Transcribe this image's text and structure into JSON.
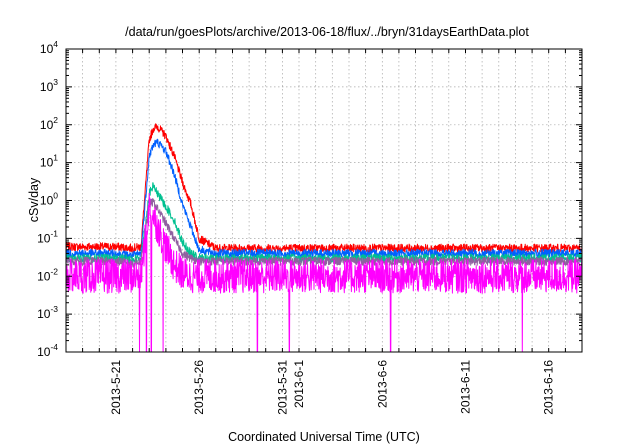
{
  "chart_data": {
    "type": "line",
    "title": "/data/run/goesPlots/archive/2013-06-18/flux/../bryn/31daysEarthData.plot",
    "xlabel": "Coordinated Universal Time (UTC)",
    "ylabel": "cSv/day",
    "yscale": "log",
    "ylim": [
      0.0001,
      10000
    ],
    "xlim": [
      "2013-05-18",
      "2013-06-18"
    ],
    "grid": true,
    "legend": "none",
    "x_ticks": [
      "2013-5-21",
      "2013-5-26",
      "2013-5-31",
      "2013-6-1",
      "2013-6-6",
      "2013-6-11",
      "2013-6-16"
    ],
    "y_ticks": [
      {
        "base": "10",
        "exp": "-4"
      },
      {
        "base": "10",
        "exp": "-3"
      },
      {
        "base": "10",
        "exp": "-2"
      },
      {
        "base": "10",
        "exp": "-1"
      },
      {
        "base": "10",
        "exp": "0"
      },
      {
        "base": "10",
        "exp": "1"
      },
      {
        "base": "10",
        "exp": "2"
      },
      {
        "base": "10",
        "exp": "3"
      },
      {
        "base": "10",
        "exp": "4"
      }
    ],
    "series": [
      {
        "color": "#ff0000",
        "x": [
          "2013-05-18",
          "2013-05-21",
          "2013-05-22",
          "2013-05-22T12:00",
          "2013-05-23",
          "2013-05-23T06:00",
          "2013-05-23T12:00",
          "2013-05-24",
          "2013-05-24T12:00",
          "2013-05-25",
          "2013-05-25T12:00",
          "2013-05-26",
          "2013-05-27",
          "2013-06-01",
          "2013-06-06",
          "2013-06-11",
          "2013-06-16",
          "2013-06-18"
        ],
        "y": [
          0.06,
          0.06,
          0.055,
          0.06,
          40,
          80,
          90,
          50,
          15,
          3,
          0.8,
          0.1,
          0.055,
          0.055,
          0.055,
          0.055,
          0.055,
          0.055
        ]
      },
      {
        "color": "#0060ff",
        "x": [
          "2013-05-18",
          "2013-05-21",
          "2013-05-22",
          "2013-05-22T12:00",
          "2013-05-23",
          "2013-05-23T06:00",
          "2013-05-23T12:00",
          "2013-05-24",
          "2013-05-24T12:00",
          "2013-05-25",
          "2013-05-25T12:00",
          "2013-05-26",
          "2013-05-27",
          "2013-06-01",
          "2013-06-06",
          "2013-06-11",
          "2013-06-16",
          "2013-06-18"
        ],
        "y": [
          0.04,
          0.04,
          0.035,
          0.04,
          15,
          30,
          35,
          20,
          5,
          0.8,
          0.2,
          0.05,
          0.04,
          0.04,
          0.04,
          0.04,
          0.04,
          0.04
        ]
      },
      {
        "color": "#00c090",
        "x": [
          "2013-05-18",
          "2013-05-21",
          "2013-05-22",
          "2013-05-22T12:00",
          "2013-05-23",
          "2013-05-23T06:00",
          "2013-05-23T12:00",
          "2013-05-24",
          "2013-05-24T12:00",
          "2013-05-25",
          "2013-05-25T12:00",
          "2013-05-26",
          "2013-05-27",
          "2013-06-01",
          "2013-06-06",
          "2013-06-11",
          "2013-06-16",
          "2013-06-18"
        ],
        "y": [
          0.03,
          0.03,
          0.028,
          0.03,
          1.5,
          2.5,
          1.5,
          0.7,
          0.3,
          0.08,
          0.04,
          0.03,
          0.03,
          0.03,
          0.03,
          0.03,
          0.03,
          0.03
        ]
      },
      {
        "color": "#9060a0",
        "x": [
          "2013-05-18",
          "2013-05-21",
          "2013-05-22",
          "2013-05-22T12:00",
          "2013-05-23",
          "2013-05-23T06:00",
          "2013-05-23T12:00",
          "2013-05-24",
          "2013-05-24T12:00",
          "2013-05-25",
          "2013-05-25T12:00",
          "2013-05-26",
          "2013-05-27",
          "2013-06-01",
          "2013-06-06",
          "2013-06-11",
          "2013-06-16",
          "2013-06-18"
        ],
        "y": [
          0.025,
          0.025,
          0.022,
          0.025,
          0.8,
          0.9,
          0.6,
          0.25,
          0.1,
          0.04,
          0.03,
          0.025,
          0.025,
          0.025,
          0.025,
          0.025,
          0.025,
          0.025
        ]
      },
      {
        "color": "#ff00ff",
        "x": [
          "2013-05-18",
          "2013-05-21",
          "2013-05-22",
          "2013-05-22T12:00",
          "2013-05-23",
          "2013-05-23T06:00",
          "2013-05-23T12:00",
          "2013-05-24",
          "2013-05-24T12:00",
          "2013-05-25",
          "2013-05-25T12:00",
          "2013-05-26",
          "2013-05-27",
          "2013-06-01",
          "2013-06-06",
          "2013-06-11",
          "2013-06-16",
          "2013-06-18"
        ],
        "y": [
          0.01,
          0.01,
          0.01,
          0.01,
          0.7,
          0.4,
          0.2,
          0.06,
          0.02,
          0.012,
          0.01,
          0.01,
          0.01,
          0.01,
          0.01,
          0.01,
          0.01,
          0.01
        ],
        "dropouts": [
          "2013-05-22T10:00",
          "2013-05-22T20:00",
          "2013-05-23T03:00",
          "2013-05-23T20:00",
          "2013-05-29T12:00",
          "2013-05-31T10:00",
          "2013-06-06T12:00",
          "2013-06-14T10:00"
        ]
      }
    ]
  }
}
